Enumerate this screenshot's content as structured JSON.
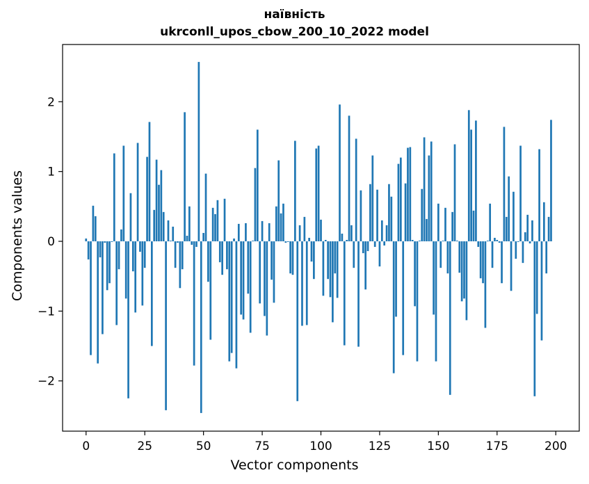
{
  "chart_data": {
    "type": "bar",
    "title_line1": "наївність",
    "title_line2": "ukrconll_upos_cbow_200_10_2022 model",
    "xlabel": "Vector components",
    "ylabel": "Components values",
    "xlim": [
      -10,
      210
    ],
    "ylim": [
      -2.72,
      2.82
    ],
    "xticks": [
      0,
      25,
      50,
      75,
      100,
      125,
      150,
      175,
      200
    ],
    "yticks": [
      -2,
      -1,
      0,
      1,
      2
    ],
    "bar_color": "#1f77b4",
    "values": [
      0.04,
      -0.26,
      -1.63,
      0.51,
      0.36,
      -1.75,
      -0.23,
      -1.33,
      -0.02,
      -0.7,
      -0.6,
      -0.01,
      1.26,
      -1.2,
      -0.4,
      0.17,
      1.37,
      -0.82,
      -2.25,
      0.69,
      -0.43,
      -1.02,
      1.41,
      -0.15,
      -0.92,
      -0.38,
      1.21,
      1.71,
      -1.5,
      0.45,
      1.17,
      0.81,
      1.02,
      0.42,
      -2.42,
      0.3,
      0.01,
      0.21,
      -0.38,
      -0.02,
      -0.67,
      -0.4,
      1.85,
      0.08,
      0.5,
      -0.05,
      -1.78,
      -0.08,
      2.57,
      -2.46,
      0.12,
      0.97,
      -0.58,
      -1.41,
      0.48,
      0.39,
      0.59,
      -0.3,
      -0.48,
      0.61,
      -0.4,
      -1.72,
      -1.6,
      0.04,
      -1.82,
      0.25,
      -1.05,
      -1.12,
      0.26,
      -0.75,
      -1.31,
      0.01,
      1.05,
      1.6,
      -0.89,
      0.29,
      -1.07,
      -1.35,
      0.26,
      -0.55,
      -0.88,
      0.5,
      1.16,
      0.4,
      0.54,
      -0.02,
      -0.01,
      -0.46,
      -0.48,
      1.44,
      -2.29,
      0.23,
      -1.21,
      0.35,
      -1.2,
      0.05,
      -0.29,
      -0.54,
      1.33,
      1.37,
      0.31,
      -0.78,
      0.02,
      -0.54,
      -0.8,
      -1.16,
      -0.46,
      -0.81,
      1.96,
      0.11,
      -1.49,
      0.02,
      1.8,
      0.23,
      -0.38,
      1.47,
      -1.51,
      0.73,
      -0.17,
      -0.69,
      -0.14,
      0.82,
      1.23,
      -0.08,
      0.74,
      -0.36,
      0.3,
      -0.06,
      0.23,
      0.82,
      0.64,
      -1.89,
      -1.08,
      1.11,
      1.2,
      -1.63,
      0.83,
      1.34,
      1.35,
      0.02,
      -0.93,
      -1.72,
      0.01,
      0.75,
      1.49,
      0.32,
      1.23,
      1.43,
      -1.05,
      -1.72,
      0.54,
      -0.38,
      0.01,
      0.48,
      -0.46,
      -2.2,
      0.42,
      1.39,
      0.01,
      -0.45,
      -0.86,
      -0.82,
      -1.13,
      1.88,
      1.6,
      0.44,
      1.73,
      -0.08,
      -0.53,
      -0.6,
      -1.24,
      0.01,
      0.54,
      -0.38,
      0.05,
      0.02,
      -0.02,
      -0.6,
      1.64,
      0.35,
      0.93,
      -0.71,
      0.71,
      -0.25,
      -0.01,
      1.37,
      -0.31,
      0.13,
      0.38,
      -0.03,
      0.3,
      -2.22,
      -1.04,
      1.32,
      -1.42,
      0.56,
      -0.46,
      0.35,
      1.74
    ]
  }
}
